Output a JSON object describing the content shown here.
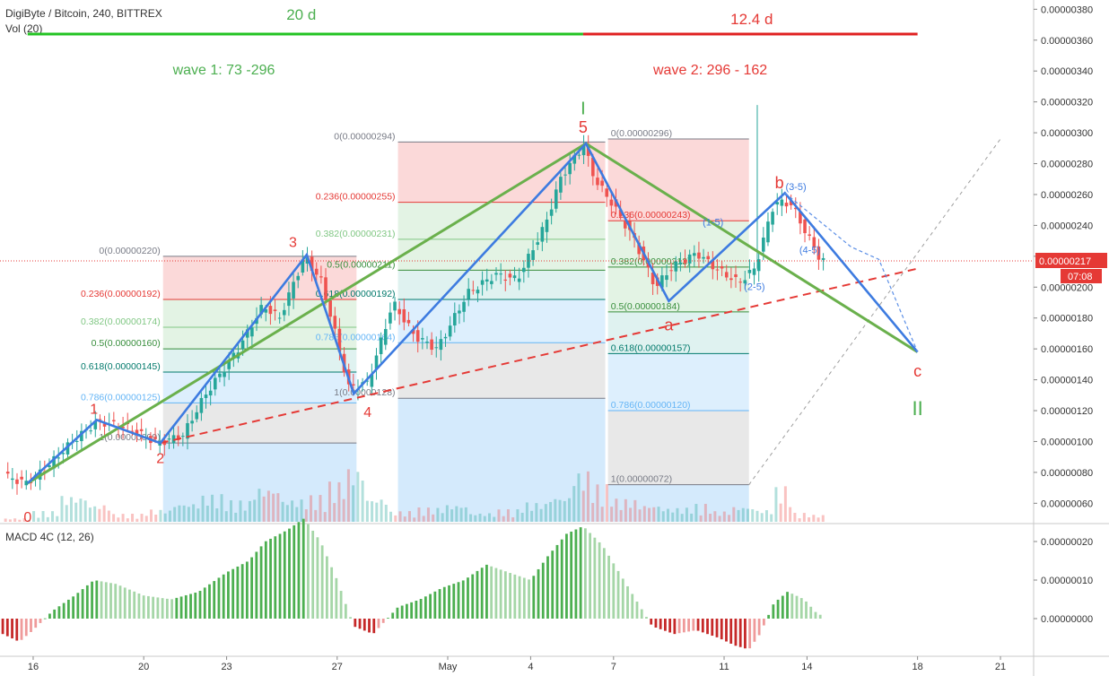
{
  "header": {
    "symbol": "DigiByte / Bitcoin, 240, BITTREX",
    "volume_label": "Vol (20)",
    "macd_label": "MACD 4C (12, 26)"
  },
  "price_axis": {
    "ticks": [
      {
        "value": 380,
        "label": "0.00000380"
      },
      {
        "value": 360,
        "label": "0.00000360"
      },
      {
        "value": 340,
        "label": "0.00000340"
      },
      {
        "value": 320,
        "label": "0.00000320"
      },
      {
        "value": 300,
        "label": "0.00000300"
      },
      {
        "value": 280,
        "label": "0.00000280"
      },
      {
        "value": 260,
        "label": "0.00000260"
      },
      {
        "value": 240,
        "label": "0.00000240"
      },
      {
        "value": 220,
        "label": "0.00000220"
      },
      {
        "value": 200,
        "label": "0.00000200"
      },
      {
        "value": 180,
        "label": "0.00000180"
      },
      {
        "value": 160,
        "label": "0.00000160"
      },
      {
        "value": 140,
        "label": "0.00000140"
      },
      {
        "value": 120,
        "label": "0.00000120"
      },
      {
        "value": 100,
        "label": "0.00000100"
      },
      {
        "value": 80,
        "label": "0.00000080"
      },
      {
        "value": 60,
        "label": "0.00000060"
      }
    ],
    "current_price": {
      "value": 217,
      "label": "0.00000217",
      "countdown": "07:08",
      "color": "#e53935"
    }
  },
  "macd_axis": {
    "ticks": [
      {
        "value": 20,
        "label": "0.00000020"
      },
      {
        "value": 10,
        "label": "0.00000010"
      },
      {
        "value": 0,
        "label": "0.00000000"
      }
    ]
  },
  "time_axis": {
    "ticks": [
      {
        "day": 16,
        "label": "16"
      },
      {
        "day": 20,
        "label": "20"
      },
      {
        "day": 23,
        "label": "23"
      },
      {
        "day": 27,
        "label": "27"
      },
      {
        "day": 31,
        "label": "May"
      },
      {
        "day": 34,
        "label": "4"
      },
      {
        "day": 37,
        "label": "7"
      },
      {
        "day": 41,
        "label": "11"
      },
      {
        "day": 44,
        "label": "14"
      },
      {
        "day": 48,
        "label": "18"
      },
      {
        "day": 51,
        "label": "21"
      }
    ]
  },
  "colors": {
    "up": "#26a69a",
    "down": "#ef5350",
    "wave_green": "#4caf50",
    "wave_red": "#e53935",
    "impulse_blue": "#3d7be0",
    "macd_up": "#4caf50",
    "macd_down": "#e53935"
  },
  "chart_data": {
    "type": "candlestick",
    "title": "DigiByte / Bitcoin, 240, BITTREX",
    "x_unit": "day of April (May 1 = day 31)",
    "y_unit": "satoshi (x0.00000001 BTC)",
    "ylim": [
      48,
      386
    ],
    "xlim": [
      14.8,
      52.2
    ],
    "price_path": [
      [
        15,
        78
      ],
      [
        15.8,
        73
      ],
      [
        16.5,
        82
      ],
      [
        17.5,
        100
      ],
      [
        18.4,
        113
      ],
      [
        19.5,
        109
      ],
      [
        20.6,
        99
      ],
      [
        21.5,
        104
      ],
      [
        22.3,
        130
      ],
      [
        23.5,
        160
      ],
      [
        24.4,
        188
      ],
      [
        25,
        180
      ],
      [
        25.9,
        220
      ],
      [
        26.5,
        204
      ],
      [
        26.9,
        178
      ],
      [
        27.5,
        135
      ],
      [
        28.2,
        138
      ],
      [
        29.1,
        190
      ],
      [
        29.9,
        168
      ],
      [
        30.7,
        160
      ],
      [
        31.8,
        196
      ],
      [
        32.8,
        208
      ],
      [
        33.6,
        205
      ],
      [
        34.6,
        240
      ],
      [
        35.2,
        272
      ],
      [
        36.0,
        292
      ],
      [
        36.4,
        270
      ],
      [
        37,
        255
      ],
      [
        37.8,
        232
      ],
      [
        38.6,
        200
      ],
      [
        39.2,
        213
      ],
      [
        40.1,
        222
      ],
      [
        40.8,
        212
      ],
      [
        41.6,
        203
      ],
      [
        42.2,
        212
      ],
      [
        42.9,
        255
      ],
      [
        43.5,
        254
      ],
      [
        44.2,
        230
      ],
      [
        44.6,
        217
      ]
    ],
    "volume_bars": [
      [
        15.5,
        4
      ],
      [
        16.4,
        12
      ],
      [
        17.4,
        30
      ],
      [
        18.4,
        20
      ],
      [
        19.4,
        9
      ],
      [
        20.6,
        14
      ],
      [
        21.6,
        22
      ],
      [
        22.5,
        31
      ],
      [
        23.6,
        24
      ],
      [
        24.4,
        40
      ],
      [
        25.5,
        26
      ],
      [
        26.4,
        30
      ],
      [
        27.0,
        45
      ],
      [
        27.7,
        62
      ],
      [
        28.4,
        28
      ],
      [
        29.4,
        12
      ],
      [
        30.4,
        16
      ],
      [
        31.4,
        20
      ],
      [
        32.2,
        10
      ],
      [
        33.2,
        14
      ],
      [
        34.2,
        22
      ],
      [
        35.1,
        30
      ],
      [
        35.9,
        58
      ],
      [
        36.5,
        42
      ],
      [
        37.4,
        26
      ],
      [
        38.4,
        20
      ],
      [
        39.2,
        16
      ],
      [
        40.2,
        20
      ],
      [
        40.9,
        12
      ],
      [
        41.7,
        18
      ],
      [
        42.5,
        14
      ],
      [
        43.2,
        40
      ],
      [
        43.9,
        10
      ],
      [
        44.5,
        8
      ]
    ],
    "macd_hist": [
      [
        14.9,
        -4
      ],
      [
        15.5,
        -6
      ],
      [
        16.0,
        -3
      ],
      [
        16.7,
        2
      ],
      [
        17.5,
        6
      ],
      [
        18.2,
        10
      ],
      [
        19.0,
        9
      ],
      [
        20.0,
        6
      ],
      [
        21.0,
        5
      ],
      [
        22.0,
        7
      ],
      [
        23.0,
        12
      ],
      [
        23.8,
        15
      ],
      [
        24.4,
        20
      ],
      [
        25.2,
        23
      ],
      [
        25.8,
        26
      ],
      [
        26.4,
        20
      ],
      [
        27.0,
        10
      ],
      [
        27.6,
        -2
      ],
      [
        28.3,
        -4
      ],
      [
        29.2,
        3
      ],
      [
        30.0,
        5
      ],
      [
        30.8,
        8
      ],
      [
        31.6,
        10
      ],
      [
        32.4,
        14
      ],
      [
        33.2,
        12
      ],
      [
        34.0,
        10
      ],
      [
        34.6,
        16
      ],
      [
        35.3,
        22
      ],
      [
        35.9,
        24
      ],
      [
        36.6,
        19
      ],
      [
        37.2,
        12
      ],
      [
        37.8,
        5
      ],
      [
        38.4,
        -2
      ],
      [
        39.2,
        -4
      ],
      [
        40.0,
        -3
      ],
      [
        40.8,
        -5
      ],
      [
        41.4,
        -7
      ],
      [
        41.9,
        -8
      ],
      [
        42.3,
        -4
      ],
      [
        42.8,
        4
      ],
      [
        43.3,
        7
      ],
      [
        43.9,
        5
      ],
      [
        44.4,
        1
      ]
    ],
    "fib_sets": [
      {
        "x1": 20.7,
        "x2": 27.7,
        "label_side": "left",
        "levels": [
          {
            "price": 220,
            "label": "0(0.00000220)",
            "color": "#787b86"
          },
          {
            "price": 192,
            "label": "0.236(0.00000192)",
            "color": "#e53935"
          },
          {
            "price": 174,
            "label": "0.382(0.00000174)",
            "color": "#81c784"
          },
          {
            "price": 160,
            "label": "0.5(0.00000160)",
            "color": "#388e3c"
          },
          {
            "price": 145,
            "label": "0.618(0.00000145)",
            "color": "#00796b"
          },
          {
            "price": 125,
            "label": "0.786(0.00000125)",
            "color": "#64b5f6"
          },
          {
            "price": 99,
            "label": "1(0.00000099)",
            "color": "#787b86"
          }
        ]
      },
      {
        "x1": 29.2,
        "x2": 36.7,
        "label_side": "left",
        "levels": [
          {
            "price": 294,
            "label": "0(0.00000294)",
            "color": "#787b86"
          },
          {
            "price": 255,
            "label": "0.236(0.00000255)",
            "color": "#e53935"
          },
          {
            "price": 231,
            "label": "0.382(0.00000231)",
            "color": "#81c784"
          },
          {
            "price": 211,
            "label": "0.5(0.00000211)",
            "color": "#388e3c"
          },
          {
            "price": 192,
            "label": "0.618(0.00000192)",
            "color": "#00796b"
          },
          {
            "price": 164,
            "label": "0.786(0.00000164)",
            "color": "#64b5f6"
          },
          {
            "price": 128,
            "label": "1(0.00000128)",
            "color": "#787b86"
          }
        ]
      },
      {
        "x1": 36.8,
        "x2": 41.9,
        "label_side": "right",
        "levels": [
          {
            "price": 296,
            "label": "0(0.00000296)",
            "color": "#787b86"
          },
          {
            "price": 243,
            "label": "0.236(0.00000243)",
            "color": "#e53935"
          },
          {
            "price": 213,
            "label": "0.382(0.00000213)",
            "color": "#388e3c"
          },
          {
            "price": 184,
            "label": "0.5(0.00000184)",
            "color": "#388e3c"
          },
          {
            "price": 157,
            "label": "0.618(0.00000157)",
            "color": "#00796b"
          },
          {
            "price": 120,
            "label": "0.786(0.00000120)",
            "color": "#64b5f6"
          },
          {
            "price": 72,
            "label": "1(0.00000072)",
            "color": "#787b86"
          }
        ]
      }
    ],
    "wave_points": {
      "blue_impulse": [
        [
          15.8,
          73
        ],
        [
          18.3,
          114
        ],
        [
          20.6,
          99
        ],
        [
          25.9,
          221
        ],
        [
          27.6,
          131
        ],
        [
          36.0,
          293
        ],
        [
          39.0,
          191
        ],
        [
          43.2,
          261
        ],
        [
          48.0,
          158
        ]
      ],
      "green_abc": [
        [
          15.8,
          73
        ],
        [
          36.0,
          293
        ],
        [
          48.0,
          158
        ]
      ],
      "red_trend": [
        [
          20.6,
          99
        ],
        [
          48.0,
          212
        ]
      ]
    },
    "wave_labels": [
      {
        "text": "0",
        "day": 15.8,
        "price": 48,
        "color": "#e53935",
        "size": 16
      },
      {
        "text": "1",
        "day": 18.2,
        "price": 118,
        "color": "#e53935",
        "size": 16
      },
      {
        "text": "2",
        "day": 20.6,
        "price": 86,
        "color": "#e53935",
        "size": 16
      },
      {
        "text": "3",
        "day": 25.4,
        "price": 226,
        "color": "#e53935",
        "size": 16
      },
      {
        "text": "4",
        "day": 28.1,
        "price": 116,
        "color": "#e53935",
        "size": 16
      },
      {
        "text": "5",
        "day": 35.9,
        "price": 300,
        "color": "#e53935",
        "size": 18
      },
      {
        "text": "I",
        "day": 35.9,
        "price": 312,
        "color": "#4caf50",
        "size": 20
      },
      {
        "text": "a",
        "day": 39.0,
        "price": 172,
        "color": "#e53935",
        "size": 18
      },
      {
        "text": "b",
        "day": 43.0,
        "price": 264,
        "color": "#e53935",
        "size": 18
      },
      {
        "text": "c",
        "day": 48.0,
        "price": 142,
        "color": "#e53935",
        "size": 18
      },
      {
        "text": "II",
        "day": 48.0,
        "price": 117,
        "color": "#4caf50",
        "size": 22
      }
    ],
    "subwave_labels": [
      {
        "text": "(1-5)",
        "day": 40.6,
        "price": 240
      },
      {
        "text": "(3-5)",
        "day": 43.6,
        "price": 263
      },
      {
        "text": "(4-5)",
        "day": 44.1,
        "price": 222
      },
      {
        "text": "(2-5)",
        "day": 42.1,
        "price": 198
      }
    ],
    "annotations": {
      "wave1": {
        "duration": "20 d",
        "range": "wave 1: 73 -296",
        "color": "#4caf50"
      },
      "wave2": {
        "duration": "12.4 d",
        "range": "wave 2: 296 - 162",
        "color": "#e53935"
      }
    }
  }
}
